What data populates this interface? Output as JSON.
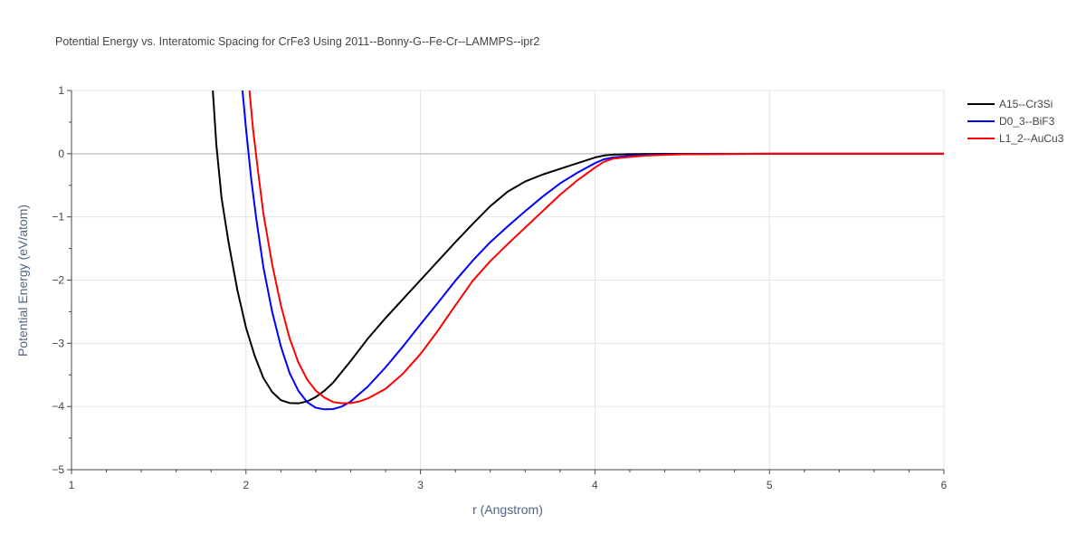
{
  "chart_data": {
    "type": "line",
    "title": "Potential Energy vs. Interatomic Spacing for CrFe3 Using 2011--Bonny-G--Fe-Cr--LAMMPS--ipr2",
    "xlabel": "r (Angstrom)",
    "ylabel": "Potential Energy (eV/atom)",
    "xlim": [
      1,
      6
    ],
    "ylim": [
      -5,
      1
    ],
    "xticks": [
      "1",
      "2",
      "3",
      "4",
      "5",
      "6"
    ],
    "yticks": [
      "1",
      "0",
      "−1",
      "−2",
      "−3",
      "−4",
      "−5"
    ],
    "grid": true,
    "legend_position": "top-right",
    "series": [
      {
        "name": "A15--Cr3Si",
        "color": "#000000",
        "x": [
          1.81,
          1.83,
          1.86,
          1.9,
          1.95,
          2.0,
          2.05,
          2.1,
          2.15,
          2.2,
          2.25,
          2.3,
          2.35,
          2.4,
          2.45,
          2.5,
          2.6,
          2.7,
          2.8,
          2.9,
          3.0,
          3.1,
          3.2,
          3.3,
          3.4,
          3.5,
          3.6,
          3.7,
          3.8,
          3.9,
          4.0,
          4.05,
          4.1,
          4.2,
          4.3,
          4.4,
          4.5,
          5.0,
          6.0
        ],
        "y": [
          1.0,
          0.15,
          -0.7,
          -1.4,
          -2.15,
          -2.75,
          -3.2,
          -3.55,
          -3.77,
          -3.9,
          -3.945,
          -3.95,
          -3.92,
          -3.85,
          -3.75,
          -3.62,
          -3.28,
          -2.92,
          -2.6,
          -2.3,
          -2.0,
          -1.7,
          -1.4,
          -1.11,
          -0.83,
          -0.6,
          -0.44,
          -0.33,
          -0.24,
          -0.15,
          -0.06,
          -0.03,
          -0.015,
          -0.008,
          -0.005,
          -0.003,
          -0.002,
          0.0,
          0.0
        ]
      },
      {
        "name": "D0_3--BiF3",
        "color": "#0000ff",
        "x": [
          1.98,
          2.0,
          2.03,
          2.06,
          2.1,
          2.15,
          2.2,
          2.25,
          2.3,
          2.35,
          2.4,
          2.45,
          2.5,
          2.55,
          2.6,
          2.7,
          2.8,
          2.9,
          3.0,
          3.1,
          3.2,
          3.3,
          3.4,
          3.5,
          3.6,
          3.7,
          3.8,
          3.9,
          4.0,
          4.05,
          4.1,
          4.2,
          4.3,
          4.4,
          4.5,
          5.0,
          6.0
        ],
        "y": [
          1.0,
          0.4,
          -0.4,
          -1.05,
          -1.8,
          -2.5,
          -3.05,
          -3.47,
          -3.75,
          -3.93,
          -4.02,
          -4.045,
          -4.04,
          -4.0,
          -3.92,
          -3.68,
          -3.38,
          -3.05,
          -2.7,
          -2.36,
          -2.01,
          -1.69,
          -1.4,
          -1.15,
          -0.91,
          -0.68,
          -0.47,
          -0.3,
          -0.15,
          -0.09,
          -0.06,
          -0.035,
          -0.02,
          -0.012,
          -0.007,
          -0.001,
          0.0
        ]
      },
      {
        "name": "L1_2--AuCu3",
        "color": "#ff0000",
        "x": [
          2.02,
          2.04,
          2.07,
          2.1,
          2.15,
          2.2,
          2.25,
          2.3,
          2.35,
          2.4,
          2.45,
          2.5,
          2.55,
          2.6,
          2.65,
          2.7,
          2.8,
          2.9,
          3.0,
          3.1,
          3.2,
          3.3,
          3.4,
          3.5,
          3.6,
          3.7,
          3.8,
          3.9,
          4.0,
          4.05,
          4.1,
          4.2,
          4.3,
          4.4,
          4.5,
          5.0,
          6.0
        ],
        "y": [
          1.0,
          0.4,
          -0.3,
          -0.95,
          -1.75,
          -2.4,
          -2.92,
          -3.3,
          -3.57,
          -3.75,
          -3.86,
          -3.93,
          -3.95,
          -3.945,
          -3.92,
          -3.87,
          -3.72,
          -3.48,
          -3.17,
          -2.8,
          -2.4,
          -2.01,
          -1.7,
          -1.43,
          -1.17,
          -0.91,
          -0.65,
          -0.42,
          -0.22,
          -0.13,
          -0.08,
          -0.05,
          -0.03,
          -0.018,
          -0.01,
          -0.001,
          0.0
        ]
      }
    ]
  }
}
